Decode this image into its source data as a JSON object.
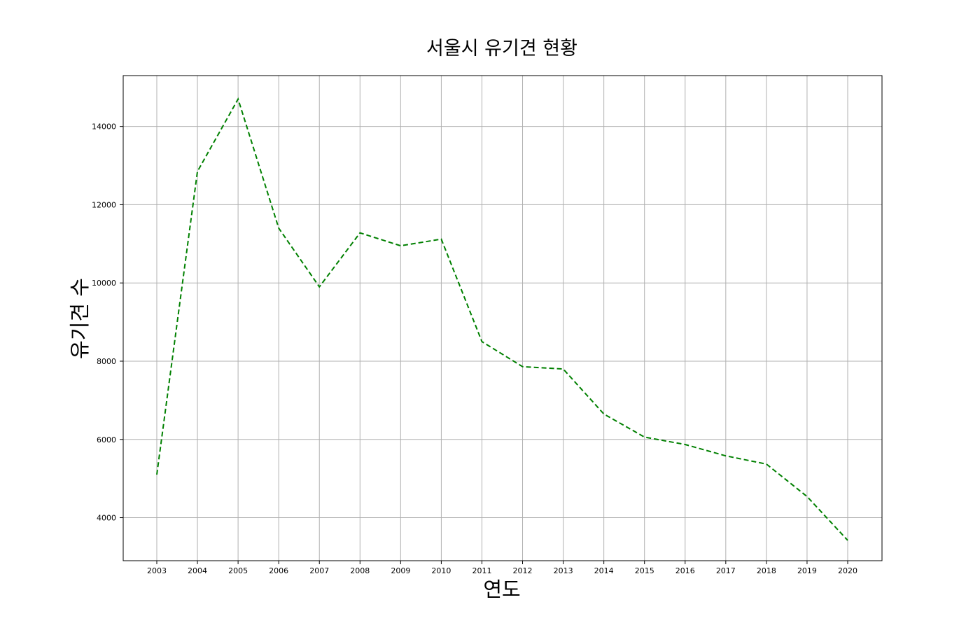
{
  "chart_data": {
    "type": "line",
    "title": "서울시 유기견 현황",
    "xlabel": "연도",
    "ylabel": "유기견 수",
    "categories": [
      "2003",
      "2004",
      "2005",
      "2006",
      "2007",
      "2008",
      "2009",
      "2010",
      "2011",
      "2012",
      "2013",
      "2014",
      "2015",
      "2016",
      "2017",
      "2018",
      "2019",
      "2020"
    ],
    "series": [
      {
        "values": [
          5100,
          12850,
          14700,
          11400,
          9900,
          11280,
          10950,
          11120,
          8500,
          7860,
          7800,
          6650,
          6060,
          5870,
          5580,
          5370,
          4540,
          3420
        ],
        "color": "#008000",
        "line_style": "dashed"
      }
    ],
    "ylim": [
      2900,
      15300
    ],
    "yticks": [
      4000,
      6000,
      8000,
      10000,
      12000,
      14000
    ],
    "ytick_labels": [
      "4000",
      "6000",
      "8000",
      "10000",
      "12000",
      "14000"
    ],
    "grid": true,
    "frame_color": "#000000",
    "grid_color": "#b0b0b0"
  }
}
